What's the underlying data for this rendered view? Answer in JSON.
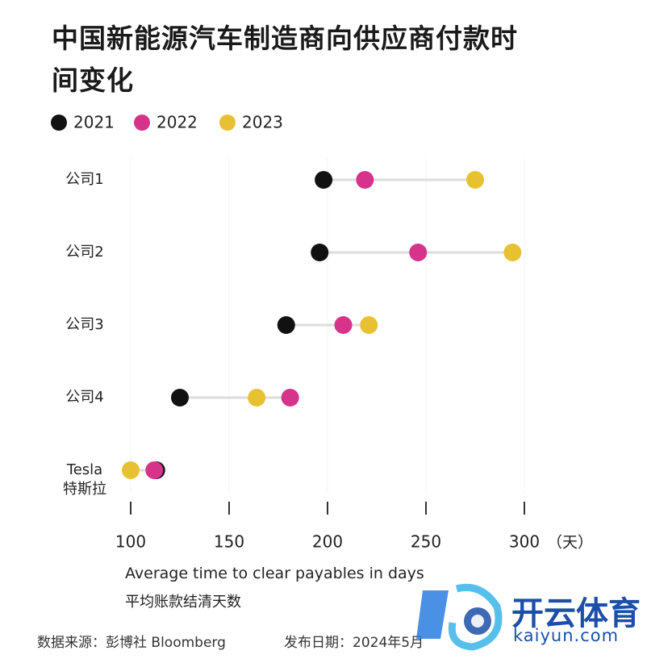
{
  "chart_data": {
    "type": "dumbbell",
    "title": "中国新能源汽车制造商向供应商付款时间变化",
    "categories": [
      "公司1",
      "公司2",
      "公司3",
      "公司4",
      "Tesla\n特斯拉"
    ],
    "series": [
      {
        "name": "2021",
        "color": "#111111",
        "values": [
          198,
          196,
          179,
          125,
          113
        ]
      },
      {
        "name": "2022",
        "color": "#d6338a",
        "values": [
          219,
          246,
          208,
          181,
          112
        ]
      },
      {
        "name": "2023",
        "color": "#e8c133",
        "values": [
          275,
          294,
          221,
          164,
          100
        ]
      }
    ],
    "xlim": [
      100,
      300
    ],
    "xticks": [
      100,
      150,
      200,
      250,
      300
    ],
    "x_unit": "（天）",
    "x_label": "Average time to clear payables in days",
    "x_label_cn": "平均账款结清天数",
    "grid": true,
    "legend": "top-left",
    "source": "数据来源：彭博社 Bloomberg",
    "date": "发布日期：2024年5月"
  },
  "watermark": {
    "name": "开云体育",
    "url": "kaiyun.com"
  }
}
